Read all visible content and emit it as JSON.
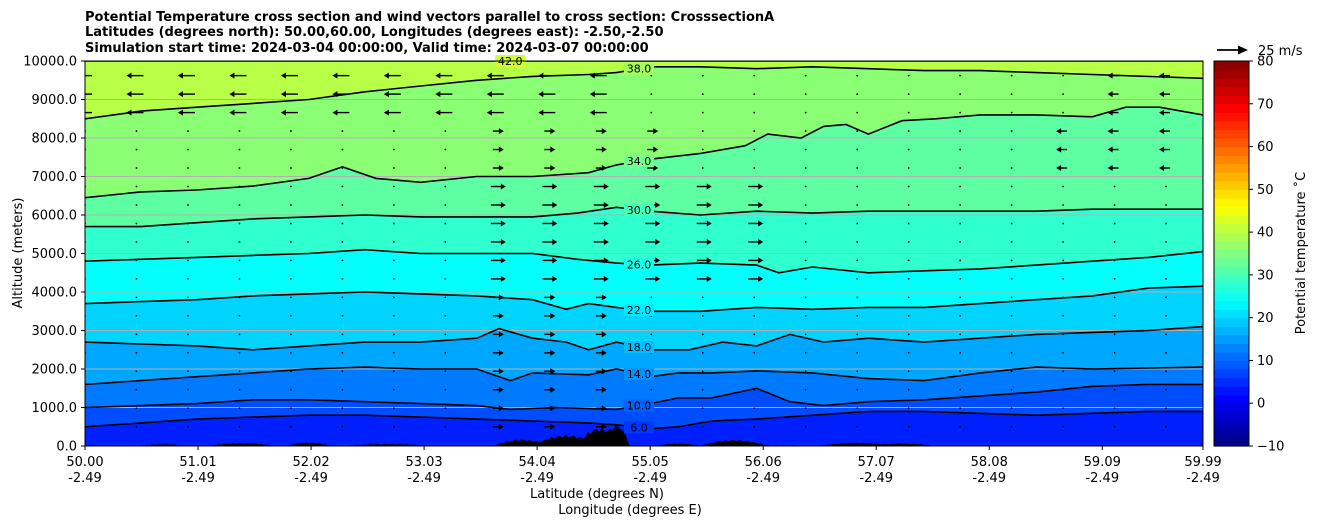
{
  "chart_data": {
    "type": "contour",
    "title_lines": [
      "Potential Temperature cross section and wind vectors parallel to cross section: CrosssectionA",
      "Latitudes (degrees north): 50.00,60.00, Longitudes (degrees east): -2.50,-2.50",
      "Simulation start time: 2024-03-04 00:00:00, Valid time: 2024-03-07 00:00:00"
    ],
    "xlabel_lines": [
      "Latitude (degrees N)",
      "Longitude (degrees E)"
    ],
    "ylabel": "Altitude (meters)",
    "xlim": [
      50.0,
      59.99
    ],
    "ylim": [
      0,
      10000
    ],
    "x_ticks": [
      {
        "lat": 50.0,
        "lat_label": "50.00",
        "lon_label": "-2.49"
      },
      {
        "lat": 51.01,
        "lat_label": "51.01",
        "lon_label": "-2.49"
      },
      {
        "lat": 52.02,
        "lat_label": "52.02",
        "lon_label": "-2.49"
      },
      {
        "lat": 53.03,
        "lat_label": "53.03",
        "lon_label": "-2.49"
      },
      {
        "lat": 54.04,
        "lat_label": "54.04",
        "lon_label": "-2.49"
      },
      {
        "lat": 55.05,
        "lat_label": "55.05",
        "lon_label": "-2.49"
      },
      {
        "lat": 56.06,
        "lat_label": "56.06",
        "lon_label": "-2.49"
      },
      {
        "lat": 57.07,
        "lat_label": "57.07",
        "lon_label": "-2.49"
      },
      {
        "lat": 58.08,
        "lat_label": "58.08",
        "lon_label": "-2.49"
      },
      {
        "lat": 59.09,
        "lat_label": "59.09",
        "lon_label": "-2.49"
      },
      {
        "lat": 59.99,
        "lat_label": "59.99",
        "lon_label": "-2.49"
      }
    ],
    "y_ticks": [
      {
        "value": 0,
        "label": "0.0"
      },
      {
        "value": 1000,
        "label": "1000.0"
      },
      {
        "value": 2000,
        "label": "2000.0"
      },
      {
        "value": 3000,
        "label": "3000.0"
      },
      {
        "value": 4000,
        "label": "4000.0"
      },
      {
        "value": 5000,
        "label": "5000.0"
      },
      {
        "value": 6000,
        "label": "6000.0"
      },
      {
        "value": 7000,
        "label": "7000.0"
      },
      {
        "value": 8000,
        "label": "8000.0"
      },
      {
        "value": 9000,
        "label": "9000.0"
      },
      {
        "value": 10000,
        "label": "10000.0"
      }
    ],
    "horizontal_grid": true,
    "contour_lines": [
      {
        "level": 6.0,
        "label": "6.0",
        "points": [
          [
            50.0,
            500
          ],
          [
            50.5,
            600
          ],
          [
            51.0,
            700
          ],
          [
            51.5,
            750
          ],
          [
            52.0,
            800
          ],
          [
            52.5,
            800
          ],
          [
            53.0,
            750
          ],
          [
            53.5,
            700
          ],
          [
            54.0,
            650
          ],
          [
            54.5,
            600
          ],
          [
            54.75,
            550
          ],
          [
            55.05,
            450
          ],
          [
            55.3,
            500
          ],
          [
            55.6,
            650
          ],
          [
            56.0,
            700
          ],
          [
            56.5,
            800
          ],
          [
            57.0,
            900
          ],
          [
            57.5,
            900
          ],
          [
            58.0,
            850
          ],
          [
            58.5,
            800
          ],
          [
            59.0,
            850
          ],
          [
            59.5,
            900
          ],
          [
            59.99,
            900
          ]
        ]
      },
      {
        "level": 10.0,
        "label": "10.0",
        "points": [
          [
            50.0,
            1000
          ],
          [
            50.5,
            1050
          ],
          [
            51.0,
            1100
          ],
          [
            51.5,
            1200
          ],
          [
            52.0,
            1200
          ],
          [
            52.5,
            1150
          ],
          [
            53.0,
            1100
          ],
          [
            53.5,
            1050
          ],
          [
            53.8,
            950
          ],
          [
            54.2,
            1000
          ],
          [
            54.75,
            950
          ],
          [
            55.05,
            1100
          ],
          [
            55.3,
            1250
          ],
          [
            55.6,
            1250
          ],
          [
            56.0,
            1500
          ],
          [
            56.3,
            1150
          ],
          [
            56.6,
            1050
          ],
          [
            57.0,
            1150
          ],
          [
            57.5,
            1200
          ],
          [
            58.0,
            1300
          ],
          [
            58.5,
            1400
          ],
          [
            59.0,
            1550
          ],
          [
            59.5,
            1600
          ],
          [
            59.99,
            1600
          ]
        ]
      },
      {
        "level": 14.0,
        "label": "14.0",
        "points": [
          [
            50.0,
            1600
          ],
          [
            50.5,
            1700
          ],
          [
            51.0,
            1800
          ],
          [
            51.5,
            1900
          ],
          [
            52.0,
            2000
          ],
          [
            52.5,
            2050
          ],
          [
            53.0,
            2000
          ],
          [
            53.5,
            2000
          ],
          [
            53.8,
            1700
          ],
          [
            54.0,
            1900
          ],
          [
            54.5,
            1850
          ],
          [
            54.75,
            2000
          ],
          [
            55.05,
            1800
          ],
          [
            55.3,
            1900
          ],
          [
            55.6,
            1900
          ],
          [
            56.0,
            1950
          ],
          [
            56.5,
            1900
          ],
          [
            57.0,
            1750
          ],
          [
            57.5,
            1700
          ],
          [
            58.0,
            1900
          ],
          [
            58.5,
            2050
          ],
          [
            59.0,
            2000
          ],
          [
            59.99,
            2050
          ]
        ]
      },
      {
        "level": 18.0,
        "label": "18.0",
        "points": [
          [
            50.0,
            2700
          ],
          [
            50.5,
            2650
          ],
          [
            51.0,
            2600
          ],
          [
            51.5,
            2500
          ],
          [
            52.0,
            2600
          ],
          [
            52.5,
            2700
          ],
          [
            53.0,
            2700
          ],
          [
            53.5,
            2800
          ],
          [
            53.7,
            3050
          ],
          [
            54.0,
            2800
          ],
          [
            54.3,
            2700
          ],
          [
            54.5,
            2500
          ],
          [
            54.75,
            2700
          ],
          [
            55.05,
            2500
          ],
          [
            55.4,
            2500
          ],
          [
            55.7,
            2700
          ],
          [
            56.0,
            2600
          ],
          [
            56.3,
            2900
          ],
          [
            56.6,
            2700
          ],
          [
            57.0,
            2800
          ],
          [
            57.5,
            2700
          ],
          [
            58.0,
            2800
          ],
          [
            58.5,
            2900
          ],
          [
            59.0,
            2950
          ],
          [
            59.5,
            3000
          ],
          [
            59.99,
            3100
          ]
        ]
      },
      {
        "level": 22.0,
        "label": "22.0",
        "points": [
          [
            50.0,
            3700
          ],
          [
            50.5,
            3750
          ],
          [
            51.0,
            3800
          ],
          [
            51.5,
            3900
          ],
          [
            52.0,
            3950
          ],
          [
            52.5,
            4000
          ],
          [
            53.0,
            3950
          ],
          [
            53.5,
            3900
          ],
          [
            54.0,
            3800
          ],
          [
            54.3,
            3550
          ],
          [
            54.5,
            3700
          ],
          [
            54.75,
            3600
          ],
          [
            55.05,
            3500
          ],
          [
            55.5,
            3500
          ],
          [
            56.0,
            3600
          ],
          [
            56.5,
            3550
          ],
          [
            57.0,
            3600
          ],
          [
            57.5,
            3600
          ],
          [
            58.0,
            3700
          ],
          [
            58.5,
            3800
          ],
          [
            59.0,
            3900
          ],
          [
            59.5,
            4100
          ],
          [
            59.99,
            4150
          ]
        ]
      },
      {
        "level": 26.0,
        "label": "26.0",
        "points": [
          [
            50.0,
            4800
          ],
          [
            50.5,
            4850
          ],
          [
            51.0,
            4900
          ],
          [
            51.5,
            4950
          ],
          [
            52.0,
            5000
          ],
          [
            52.5,
            5100
          ],
          [
            53.0,
            5000
          ],
          [
            53.5,
            5000
          ],
          [
            54.0,
            5000
          ],
          [
            54.4,
            4850
          ],
          [
            54.75,
            4750
          ],
          [
            55.05,
            4700
          ],
          [
            55.5,
            4750
          ],
          [
            56.0,
            4700
          ],
          [
            56.2,
            4500
          ],
          [
            56.5,
            4650
          ],
          [
            57.0,
            4500
          ],
          [
            57.5,
            4550
          ],
          [
            58.0,
            4600
          ],
          [
            58.5,
            4700
          ],
          [
            59.0,
            4800
          ],
          [
            59.5,
            4900
          ],
          [
            59.99,
            5050
          ]
        ]
      },
      {
        "level": 30.0,
        "label": "30.0",
        "points": [
          [
            50.0,
            5700
          ],
          [
            50.5,
            5700
          ],
          [
            51.0,
            5800
          ],
          [
            51.5,
            5900
          ],
          [
            52.0,
            5950
          ],
          [
            52.5,
            6000
          ],
          [
            53.0,
            5950
          ],
          [
            53.5,
            5950
          ],
          [
            54.0,
            5950
          ],
          [
            54.4,
            6050
          ],
          [
            54.75,
            6200
          ],
          [
            55.05,
            6100
          ],
          [
            55.5,
            6000
          ],
          [
            56.0,
            6100
          ],
          [
            56.5,
            6050
          ],
          [
            57.0,
            6100
          ],
          [
            57.5,
            6100
          ],
          [
            58.0,
            6100
          ],
          [
            58.5,
            6100
          ],
          [
            59.0,
            6150
          ],
          [
            59.5,
            6150
          ],
          [
            59.99,
            6150
          ]
        ]
      },
      {
        "level": 34.0,
        "label": "34.0",
        "points": [
          [
            50.0,
            6450
          ],
          [
            50.5,
            6600
          ],
          [
            51.0,
            6650
          ],
          [
            51.5,
            6750
          ],
          [
            52.0,
            6950
          ],
          [
            52.3,
            7250
          ],
          [
            52.6,
            6950
          ],
          [
            53.0,
            6850
          ],
          [
            53.5,
            7000
          ],
          [
            54.0,
            7000
          ],
          [
            54.5,
            7100
          ],
          [
            54.75,
            7300
          ],
          [
            55.05,
            7450
          ],
          [
            55.5,
            7600
          ],
          [
            55.9,
            7800
          ],
          [
            56.1,
            8100
          ],
          [
            56.4,
            8000
          ],
          [
            56.6,
            8300
          ],
          [
            56.8,
            8350
          ],
          [
            57.0,
            8100
          ],
          [
            57.3,
            8450
          ],
          [
            57.6,
            8500
          ],
          [
            58.0,
            8600
          ],
          [
            58.5,
            8600
          ],
          [
            59.0,
            8550
          ],
          [
            59.3,
            8800
          ],
          [
            59.6,
            8800
          ],
          [
            59.99,
            8600
          ]
        ]
      },
      {
        "level": 38.0,
        "label": "38.0",
        "points": [
          [
            50.0,
            8500
          ],
          [
            50.5,
            8700
          ],
          [
            51.0,
            8800
          ],
          [
            51.5,
            8900
          ],
          [
            52.0,
            9000
          ],
          [
            52.5,
            9200
          ],
          [
            53.0,
            9350
          ],
          [
            53.5,
            9500
          ],
          [
            54.0,
            9600
          ],
          [
            54.5,
            9650
          ],
          [
            54.75,
            9700
          ],
          [
            55.05,
            9850
          ],
          [
            55.5,
            9850
          ],
          [
            56.0,
            9800
          ],
          [
            56.5,
            9850
          ],
          [
            57.0,
            9800
          ],
          [
            57.5,
            9750
          ],
          [
            58.0,
            9750
          ],
          [
            58.5,
            9700
          ],
          [
            59.0,
            9650
          ],
          [
            59.99,
            9550
          ]
        ]
      },
      {
        "level": 42.0,
        "label": "42.0",
        "points": [
          [
            50.0,
            10000
          ],
          [
            54.0,
            10000
          ],
          [
            59.99,
            10000
          ]
        ]
      }
    ],
    "terrain_max_altitude": 600,
    "wind_vectors": {
      "reference_speed": 25,
      "reference_label": "25 m/s",
      "direction": "parallel to cross section"
    },
    "colorbar": {
      "label": "Potential temperature ˚C",
      "ticks": [
        {
          "value": -10,
          "label": "−10"
        },
        {
          "value": 0,
          "label": "0"
        },
        {
          "value": 10,
          "label": "10"
        },
        {
          "value": 20,
          "label": "20"
        },
        {
          "value": 30,
          "label": "30"
        },
        {
          "value": 40,
          "label": "40"
        },
        {
          "value": 50,
          "label": "50"
        },
        {
          "value": 60,
          "label": "60"
        },
        {
          "value": 70,
          "label": "70"
        },
        {
          "value": 80,
          "label": "80"
        }
      ],
      "range": [
        -10,
        80
      ],
      "colormap": "jet"
    }
  }
}
